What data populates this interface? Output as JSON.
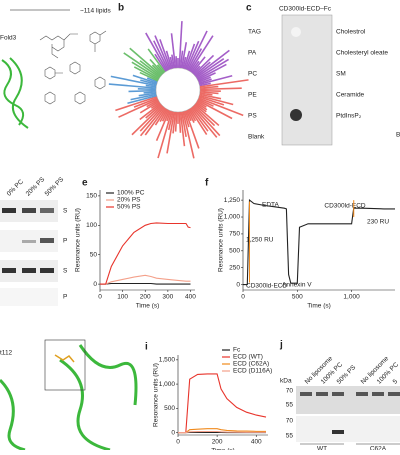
{
  "panels": {
    "a": {
      "lipids_label": "~114 lipids",
      "fold_label": "Fold3"
    },
    "b": {
      "letter": "b"
    },
    "c": {
      "letter": "c",
      "title": "CD300ld-ECD–Fc",
      "left": [
        "TAG",
        "PA",
        "PC",
        "PE",
        "PS",
        "Blank"
      ],
      "right": [
        "Cholestrol",
        "Cholesteryl oleate",
        "SM",
        "Ceramide",
        "PtdInsP₂"
      ],
      "edge": "B"
    },
    "d": {
      "columns": [
        "0% PC",
        "20% PS",
        "50% PS"
      ],
      "rows": [
        "S",
        "P",
        "S",
        "P"
      ]
    },
    "h": {
      "residue": "t112"
    },
    "j": {
      "letter": "j",
      "unit": "kDa",
      "markers": [
        "70",
        "55",
        "70",
        "55"
      ],
      "lanes": [
        "No liposome",
        "100% PC",
        "50% PS",
        "No liposome",
        "100% PC",
        "5"
      ],
      "groups": [
        "WT",
        "C62A"
      ]
    }
  },
  "chart_data": [
    {
      "type": "line",
      "letter": "e",
      "xlabel": "Time (s)",
      "ylabel": "Resonance units (RU)",
      "x": [
        0,
        25,
        50,
        100,
        150,
        200,
        225,
        250,
        300,
        350,
        380,
        390,
        400
      ],
      "series": [
        {
          "name": "100% PC",
          "color": "#222222",
          "values": [
            0,
            0,
            1,
            1,
            1,
            1,
            1,
            0,
            0,
            0,
            0,
            0,
            0
          ]
        },
        {
          "name": "20% PS",
          "color": "#f4a08a",
          "values": [
            0,
            0,
            4,
            8,
            12,
            15,
            13,
            10,
            8,
            6,
            5,
            5,
            5
          ]
        },
        {
          "name": "50% PS",
          "color": "#e8342b",
          "values": [
            0,
            0,
            30,
            65,
            88,
            100,
            103,
            104,
            103,
            103,
            103,
            97,
            96
          ]
        }
      ],
      "xlim": [
        0,
        420
      ],
      "ylim": [
        -10,
        160
      ],
      "xticks": [
        0,
        100,
        200,
        300,
        400
      ],
      "yticks": [
        0,
        50,
        100,
        150
      ]
    },
    {
      "type": "line",
      "letter": "f",
      "xlabel": "Time (s)",
      "ylabel": "Resonance units (RU)",
      "x": [
        0,
        40,
        60,
        100,
        200,
        300,
        380,
        400,
        420,
        440,
        500,
        520,
        600,
        800,
        1000,
        1020,
        1100,
        1300,
        1400
      ],
      "series": [
        {
          "name": "CD300ld-ECD",
          "color": "#222222",
          "values": [
            0,
            0,
            1250,
            1200,
            1170,
            1150,
            1130,
            1120,
            150,
            20,
            20,
            850,
            900,
            900,
            900,
            1130,
            1130,
            1120,
            1120
          ]
        }
      ],
      "xlim": [
        0,
        1400
      ],
      "ylim": [
        -80,
        1400
      ],
      "xticks": [
        0,
        500,
        {
          "value": 1000,
          "label": "1,000"
        }
      ],
      "yticks": [
        0,
        250,
        500,
        750,
        {
          "value": 1000,
          "label": "1,000"
        },
        {
          "value": 1250,
          "label": "1,250"
        }
      ],
      "annotations": [
        "1,250 RU",
        "EDTA",
        "CD300ld-ECD",
        "CD300ld-ECD",
        "Annexin V",
        "230 RU"
      ]
    },
    {
      "type": "line",
      "letter": "i",
      "xlabel": "Time (s)",
      "ylabel": "Resonance units (RU)",
      "x": [
        0,
        40,
        60,
        100,
        150,
        200,
        220,
        250,
        300,
        350,
        400,
        450
      ],
      "series": [
        {
          "name": "Fc",
          "color": "#222222",
          "values": [
            0,
            0,
            2,
            2,
            2,
            2,
            1,
            0,
            0,
            0,
            0,
            0
          ]
        },
        {
          "name": "ECD (WT)",
          "color": "#e8342b",
          "values": [
            0,
            0,
            1100,
            1200,
            1210,
            1210,
            900,
            700,
            520,
            420,
            360,
            320
          ]
        },
        {
          "name": "ECD (C62A)",
          "color": "#f08a1c",
          "values": [
            0,
            0,
            60,
            70,
            80,
            80,
            60,
            45,
            35,
            30,
            25,
            25
          ]
        },
        {
          "name": "ECD (D116A)",
          "color": "#f4a08a",
          "values": [
            0,
            0,
            15,
            20,
            22,
            22,
            15,
            10,
            8,
            6,
            5,
            5
          ]
        }
      ],
      "xlim": [
        0,
        460
      ],
      "ylim": [
        -50,
        1600
      ],
      "xticks": [
        0,
        200,
        400
      ],
      "yticks": [
        0,
        500,
        {
          "value": 1000,
          "label": "1,000"
        },
        {
          "value": 1500,
          "label": "1,500"
        }
      ]
    }
  ]
}
